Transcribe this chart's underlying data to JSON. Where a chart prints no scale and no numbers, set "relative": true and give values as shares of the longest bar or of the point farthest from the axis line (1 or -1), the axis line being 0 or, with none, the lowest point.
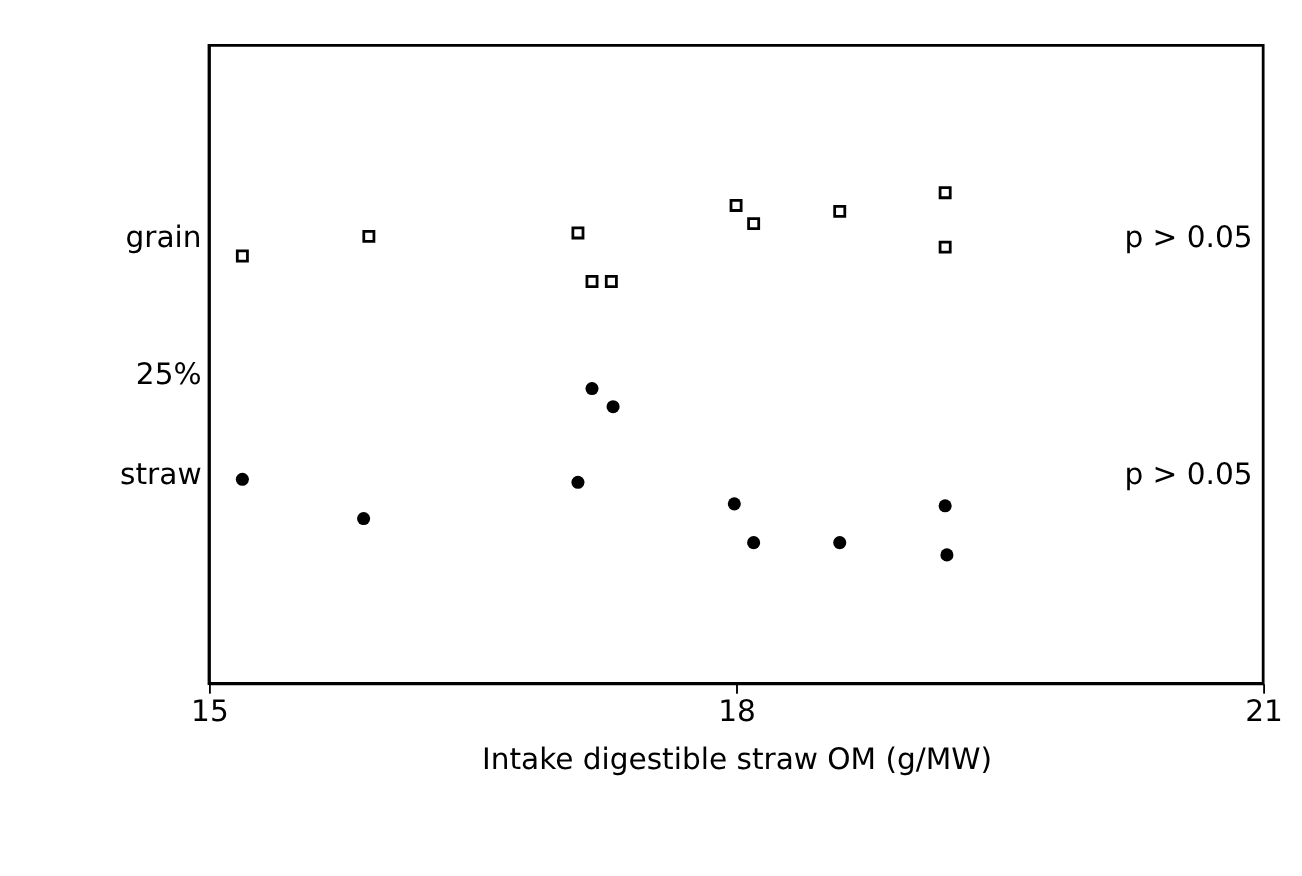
{
  "chart_data": {
    "type": "scatter",
    "relative": true,
    "xlabel": "Intake digestible straw OM (g/MW)",
    "xlim": [
      15,
      21
    ],
    "xticks": [
      15,
      18,
      21
    ],
    "grid": false,
    "series": [
      {
        "color": "#000000",
        "marker": "square",
        "x": [
          15.19,
          15.91,
          17.1,
          17.18,
          17.29,
          18.0,
          18.1,
          18.59,
          19.19,
          19.19
        ],
        "values": [
          0.871,
          0.911,
          0.918,
          0.819,
          0.819,
          0.974,
          0.937,
          0.962,
          1.0,
          0.889
        ]
      },
      {
        "color": "#000000",
        "marker": "circle",
        "x": [
          15.19,
          15.88,
          17.1,
          17.18,
          17.3,
          17.99,
          18.1,
          18.59,
          19.19,
          19.2
        ],
        "values": [
          0.416,
          0.336,
          0.41,
          0.601,
          0.564,
          0.366,
          0.287,
          0.287,
          0.362,
          0.262
        ]
      }
    ],
    "annotations": [
      "grain",
      "25%",
      "straw",
      "p > 0.05",
      "p > 0.05"
    ]
  }
}
